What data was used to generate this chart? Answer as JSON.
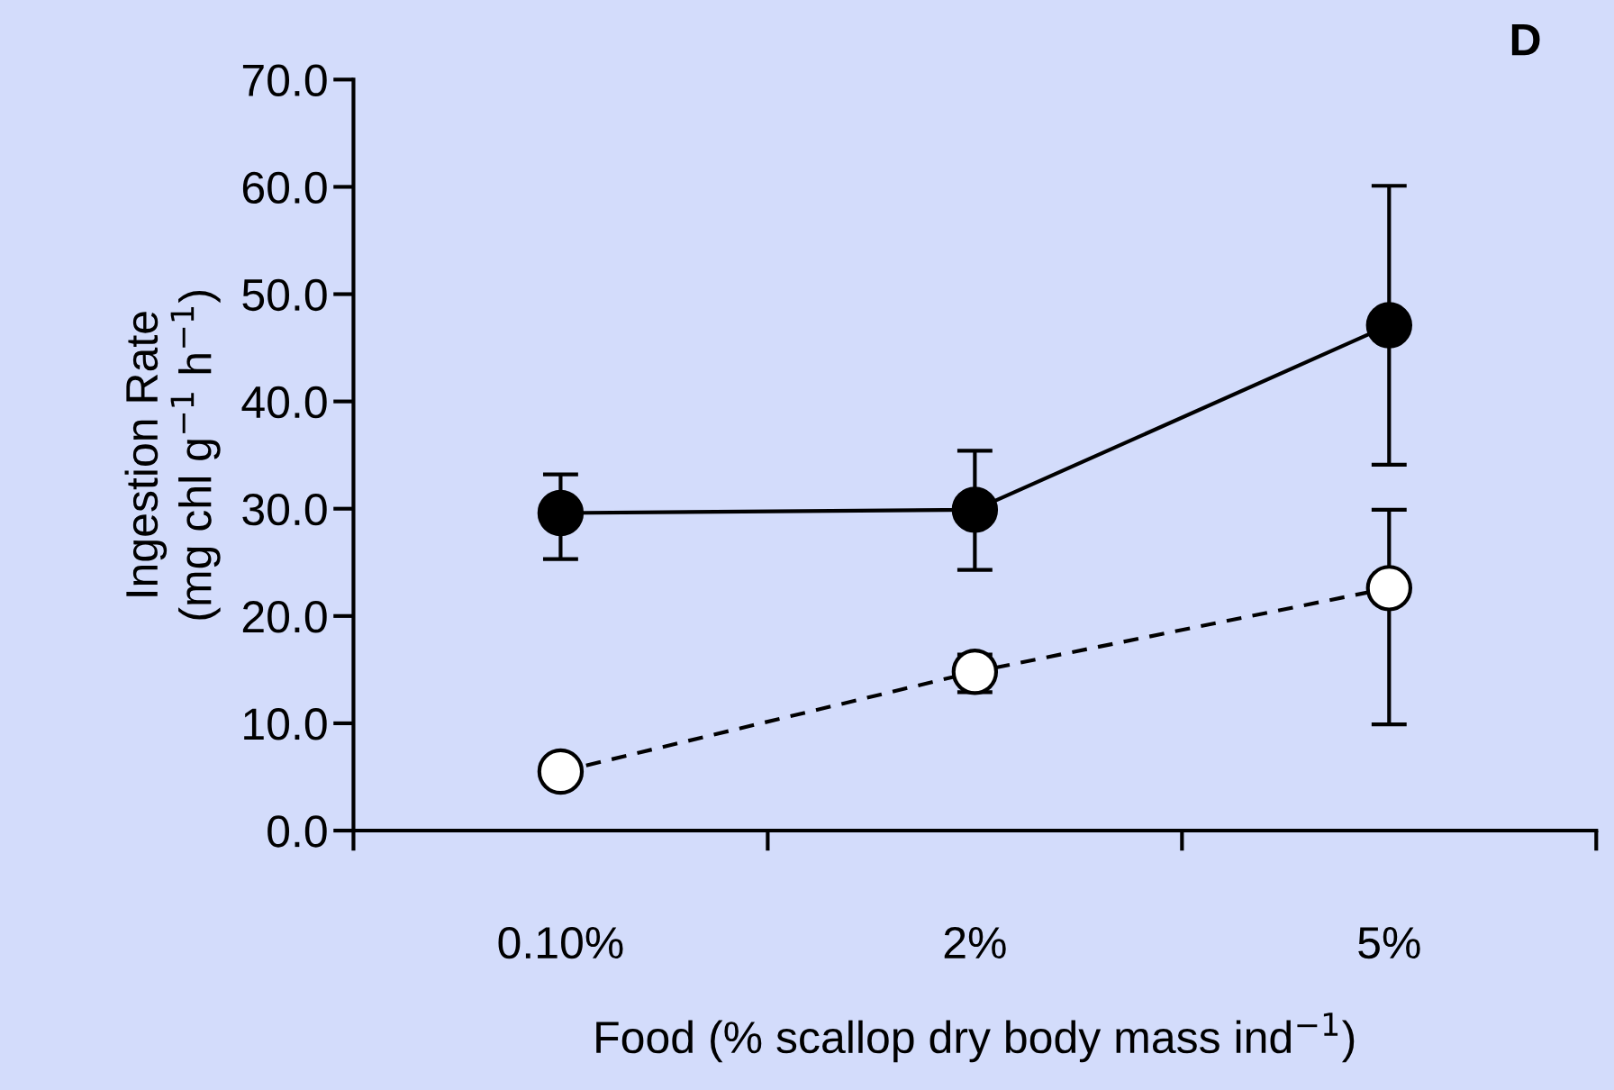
{
  "chart_data": {
    "type": "line",
    "xlabel": "Food (% scallop dry body mass ind$^{−1}$)",
    "ylabel": "Ingestion Rate\n(mg chl g$^{−1}$ h$^{−1}$)",
    "annotations": [
      "D"
    ],
    "categories": [
      "0.10%",
      "2%",
      "5%"
    ],
    "ylim": [
      0,
      70
    ],
    "yticks": [
      {
        "value": 0,
        "label": "0.0"
      },
      {
        "value": 10,
        "label": "10.0"
      },
      {
        "value": 20,
        "label": "20.0"
      },
      {
        "value": 30,
        "label": "30.0"
      },
      {
        "value": 40,
        "label": "40.0"
      },
      {
        "value": 50,
        "label": "50.0"
      },
      {
        "value": 60,
        "label": "60.0"
      },
      {
        "value": 70,
        "label": "70.0"
      }
    ],
    "marker": "circle",
    "series": [
      {
        "color": "#000000",
        "line_style": "solid",
        "values": [
          29.6,
          29.9,
          47.1
        ],
        "errors": [
          [
            25.3,
            33.2
          ],
          [
            24.3,
            35.4
          ],
          [
            34.1,
            60.1
          ]
        ]
      },
      {
        "color": "#ffffff",
        "line_style": "dashed",
        "values": [
          5.5,
          14.8,
          22.6
        ],
        "errors": [
          null,
          [
            12.9,
            16.4
          ],
          [
            9.9,
            29.9
          ]
        ]
      }
    ]
  }
}
